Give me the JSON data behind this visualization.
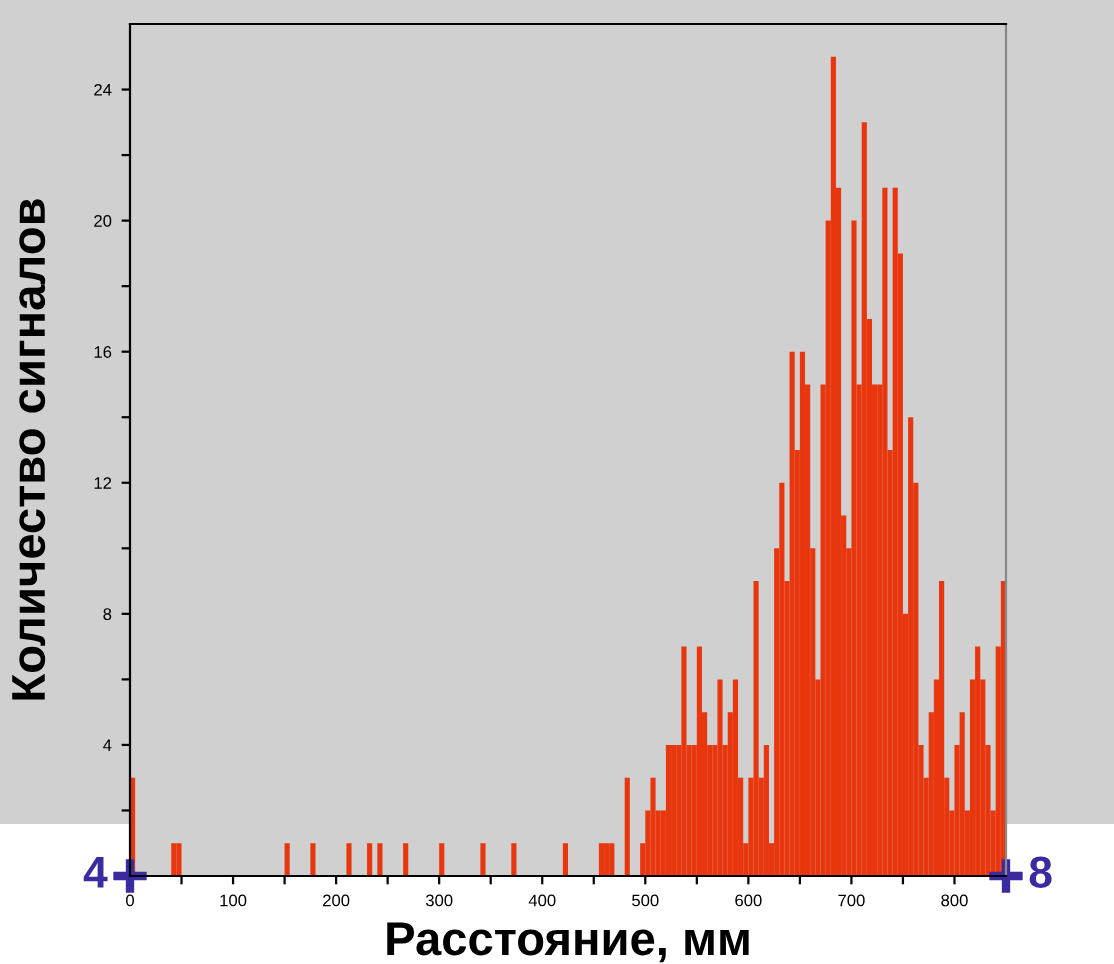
{
  "chart_data": {
    "type": "histogram",
    "xlabel": "Расстояние, мм",
    "ylabel": "Количество сигналов",
    "bins": [
      0,
      5,
      10,
      15,
      20,
      25,
      30,
      35,
      40,
      45,
      50,
      55,
      60,
      65,
      70,
      75,
      80,
      85,
      90,
      95,
      100,
      105,
      110,
      115,
      120,
      125,
      130,
      135,
      140,
      145,
      150,
      155,
      160,
      165,
      170,
      175,
      180,
      185,
      190,
      195,
      200,
      205,
      210,
      215,
      220,
      225,
      230,
      235,
      240,
      245,
      250,
      255,
      260,
      265,
      270,
      275,
      280,
      285,
      290,
      295,
      300,
      305,
      310,
      315,
      320,
      325,
      330,
      335,
      340,
      345,
      350,
      355,
      360,
      365,
      370,
      375,
      380,
      385,
      390,
      395,
      400,
      405,
      410,
      415,
      420,
      425,
      430,
      435,
      440,
      445,
      450,
      455,
      460,
      465,
      470,
      475,
      480,
      485,
      490,
      495,
      500,
      505,
      510,
      515,
      520,
      525,
      530,
      535,
      540,
      545,
      550,
      555,
      560,
      565,
      570,
      575,
      580,
      585,
      590,
      595,
      600,
      605,
      610,
      615,
      620,
      625,
      630,
      635,
      640,
      645,
      650,
      655,
      660,
      665,
      670,
      675,
      680,
      685,
      690,
      695,
      700,
      705,
      710,
      715,
      720,
      725,
      730,
      735,
      740,
      745,
      750,
      755,
      760,
      765,
      770,
      775,
      780,
      785,
      790,
      795,
      800,
      805,
      810,
      815,
      820,
      825,
      830,
      835,
      840,
      845,
      850
    ],
    "values": [
      3,
      0,
      0,
      0,
      0,
      0,
      0,
      0,
      1,
      1,
      0,
      0,
      0,
      0,
      0,
      0,
      0,
      0,
      0,
      0,
      0,
      0,
      0,
      0,
      0,
      0,
      0,
      0,
      0,
      0,
      1,
      0,
      0,
      0,
      0,
      1,
      0,
      0,
      0,
      0,
      0,
      0,
      1,
      0,
      0,
      0,
      1,
      0,
      1,
      0,
      0,
      0,
      0,
      1,
      0,
      0,
      0,
      0,
      0,
      0,
      1,
      0,
      0,
      0,
      0,
      0,
      0,
      0,
      1,
      0,
      0,
      0,
      0,
      0,
      1,
      0,
      0,
      0,
      0,
      0,
      0,
      0,
      0,
      0,
      1,
      0,
      0,
      0,
      0,
      0,
      0,
      1,
      1,
      1,
      0,
      0,
      3,
      0,
      0,
      1,
      2,
      3,
      2,
      2,
      4,
      4,
      4,
      7,
      4,
      4,
      7,
      5,
      4,
      4,
      6,
      4,
      5,
      6,
      3,
      1,
      3,
      9,
      3,
      4,
      1,
      10,
      12,
      9,
      16,
      13,
      16,
      15,
      10,
      6,
      15,
      20,
      25,
      21,
      11,
      10,
      20,
      15,
      23,
      17,
      15,
      15,
      21,
      13,
      21,
      19,
      8,
      14,
      12,
      4,
      3,
      5,
      6,
      9,
      3,
      2,
      4,
      5,
      2,
      6,
      7,
      6,
      4,
      2,
      7,
      9
    ],
    "color": "#e8360e",
    "xlim": [
      0,
      850
    ],
    "ylim": [
      0,
      26
    ],
    "xticks": [
      0,
      {
        "value": 50,
        "label": null
      },
      100,
      {
        "value": 150,
        "label": null
      },
      200,
      {
        "value": 250,
        "label": null
      },
      300,
      {
        "value": 350,
        "label": null
      },
      400,
      {
        "value": 450,
        "label": null
      },
      500,
      {
        "value": 550,
        "label": null
      },
      600,
      {
        "value": 650,
        "label": null
      },
      700,
      {
        "value": 750,
        "label": null
      },
      800
    ],
    "yticks": [
      {
        "value": 2,
        "label": null
      },
      4,
      {
        "value": 6,
        "label": null
      },
      8,
      {
        "value": 10,
        "label": null
      },
      12,
      {
        "value": 14,
        "label": null
      },
      16,
      {
        "value": 18,
        "label": null
      },
      20,
      {
        "value": 22,
        "label": null
      },
      24
    ],
    "annotations": [
      {
        "text": "4",
        "x": 0,
        "y": 0
      },
      {
        "text": "8",
        "x": 850,
        "y": 0
      }
    ],
    "grid": false
  }
}
